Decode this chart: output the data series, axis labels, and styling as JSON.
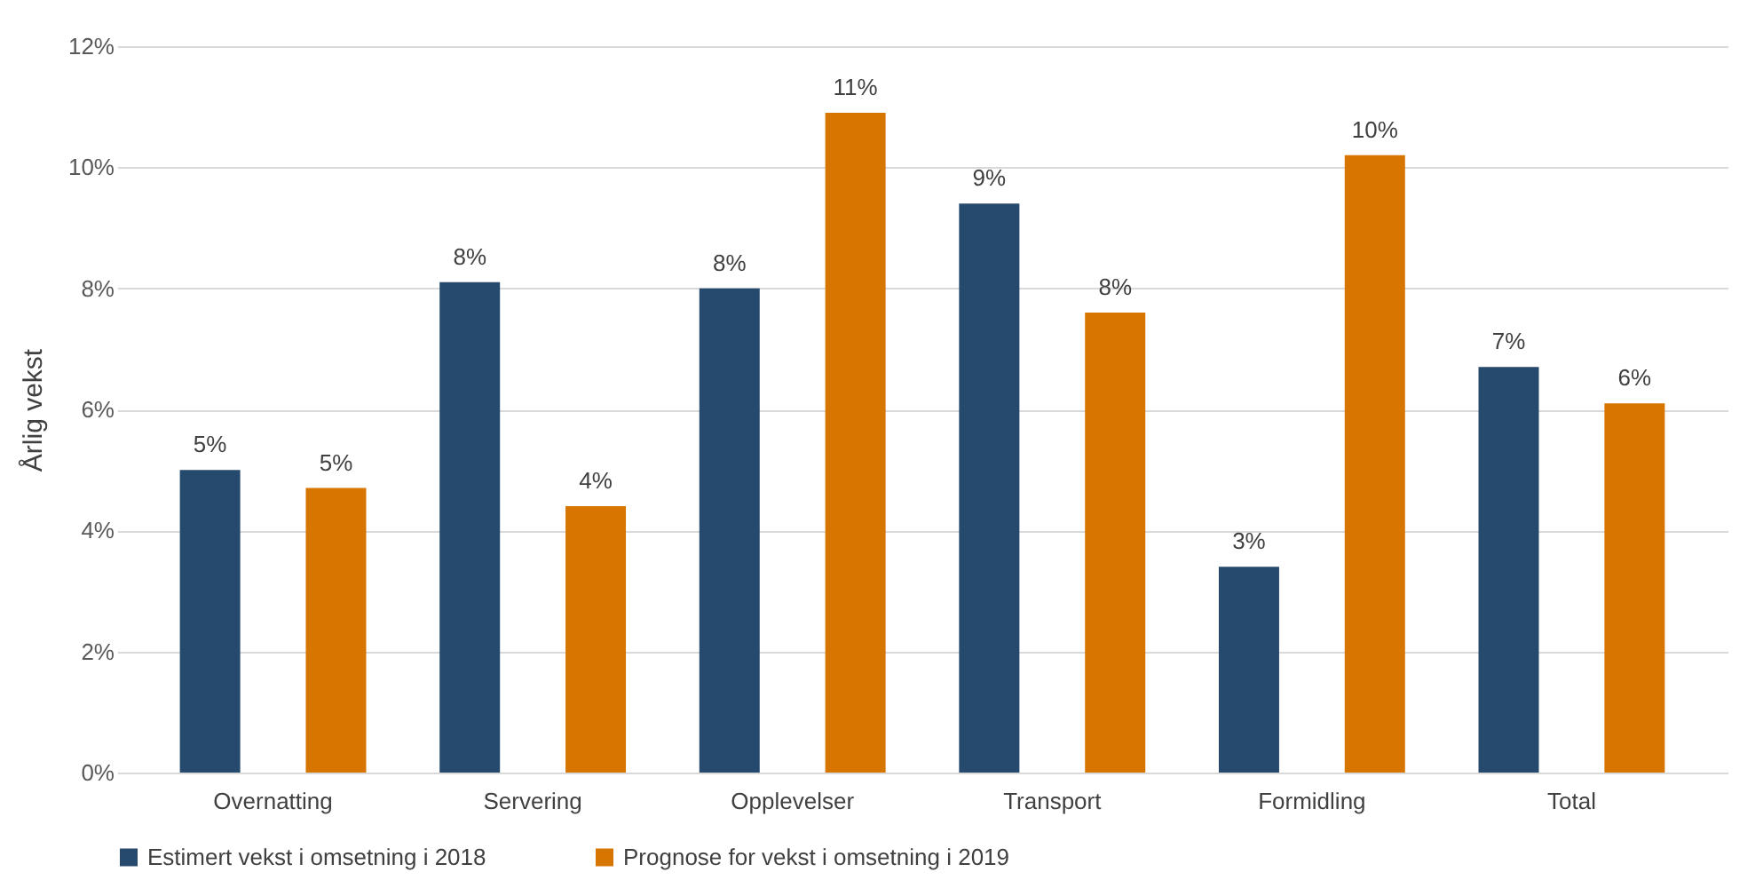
{
  "chart_data": {
    "type": "bar",
    "ylabel": "Årlig vekst",
    "categories": [
      "Overnatting",
      "Servering",
      "Opplevelser",
      "Transport",
      "Formidling",
      "Total"
    ],
    "series": [
      {
        "name": "Estimert vekst i omsetning i 2018",
        "color": "#264a6e",
        "values": [
          5.0,
          8.1,
          8.0,
          9.4,
          3.4,
          6.7
        ],
        "value_labels": [
          "5%",
          "8%",
          "8%",
          "9%",
          "3%",
          "7%"
        ]
      },
      {
        "name": "Prognose for vekst i omsetning i 2019",
        "color": "#d67500",
        "values": [
          4.7,
          4.4,
          10.9,
          7.6,
          10.2,
          6.1
        ],
        "value_labels": [
          "5%",
          "4%",
          "11%",
          "8%",
          "10%",
          "6%"
        ]
      }
    ],
    "ylim": [
      0,
      12
    ],
    "yticks": [
      {
        "value": 0,
        "label": "0%"
      },
      {
        "value": 2,
        "label": "2%"
      },
      {
        "value": 4,
        "label": "4%"
      },
      {
        "value": 6,
        "label": "6%"
      },
      {
        "value": 8,
        "label": "8%"
      },
      {
        "value": 10,
        "label": "10%"
      },
      {
        "value": 12,
        "label": "12%"
      }
    ],
    "grid": "y",
    "legend": "bottom"
  }
}
